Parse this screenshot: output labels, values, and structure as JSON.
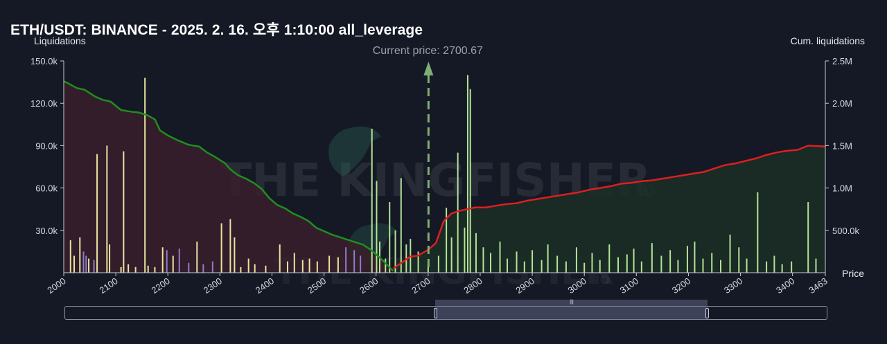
{
  "title": "ETH/USDT: BINANCE - 2025. 2. 16. 오후 1:10:00 all_leverage",
  "colors": {
    "background": "#151925",
    "short_fill": "#3a1f2c",
    "long_fill": "#1b2e24",
    "cum_short_line": "#1e8f1e",
    "cum_long_line": "#dd1f1f",
    "bar_yellow": "#e6e6a0",
    "bar_green": "#b4e496",
    "bar_purple": "#8a7fc8",
    "current_price_line": "#7fae72"
  },
  "chart_data": {
    "type": "bar",
    "title": "ETH/USDT: BINANCE - 2025. 2. 16. 오후 1:10:00 all_leverage",
    "ylabel_left": "Liquidations",
    "ylabel_right": "Cum. liquidations",
    "xlabel": "Price",
    "current_price_label": "Current price: 2700.67",
    "current_price": 2700.67,
    "xlim": [
      2000,
      3463
    ],
    "ylim_left": [
      0,
      150000
    ],
    "ylim_right": [
      0,
      2500000
    ],
    "x_ticks": [
      "2000",
      "2100",
      "2200",
      "2300",
      "2400",
      "2500",
      "2600",
      "2700",
      "2800",
      "2900",
      "3000",
      "3100",
      "3200",
      "3300",
      "3400",
      "3463"
    ],
    "y_left_ticks": [
      "30.0k",
      "60.0k",
      "90.0k",
      "120.0k",
      "150.0k"
    ],
    "y_right_ticks": [
      "500.0k",
      "1.0M",
      "1.5M",
      "2.0M",
      "2.5M"
    ],
    "grid": false,
    "bars": [
      {
        "x": 2013,
        "y": 23000,
        "c": "yellow"
      },
      {
        "x": 2020,
        "y": 12000,
        "c": "yellow"
      },
      {
        "x": 2031,
        "y": 25000,
        "c": "yellow"
      },
      {
        "x": 2038,
        "y": 15000,
        "c": "purple"
      },
      {
        "x": 2043,
        "y": 12000,
        "c": "purple"
      },
      {
        "x": 2048,
        "y": 10000,
        "c": "yellow"
      },
      {
        "x": 2058,
        "y": 9000,
        "c": "purple"
      },
      {
        "x": 2064,
        "y": 84000,
        "c": "yellow"
      },
      {
        "x": 2083,
        "y": 90000,
        "c": "yellow"
      },
      {
        "x": 2088,
        "y": 20000,
        "c": "yellow"
      },
      {
        "x": 2110,
        "y": 4000,
        "c": "yellow"
      },
      {
        "x": 2115,
        "y": 86000,
        "c": "yellow"
      },
      {
        "x": 2124,
        "y": 6000,
        "c": "yellow"
      },
      {
        "x": 2138,
        "y": 4000,
        "c": "yellow"
      },
      {
        "x": 2156,
        "y": 138000,
        "c": "yellow"
      },
      {
        "x": 2162,
        "y": 5000,
        "c": "yellow"
      },
      {
        "x": 2175,
        "y": 4000,
        "c": "yellow"
      },
      {
        "x": 2190,
        "y": 18000,
        "c": "yellow"
      },
      {
        "x": 2198,
        "y": 16000,
        "c": "purple"
      },
      {
        "x": 2210,
        "y": 12000,
        "c": "yellow"
      },
      {
        "x": 2222,
        "y": 17000,
        "c": "purple"
      },
      {
        "x": 2240,
        "y": 7000,
        "c": "purple"
      },
      {
        "x": 2256,
        "y": 22000,
        "c": "yellow"
      },
      {
        "x": 2268,
        "y": 6000,
        "c": "purple"
      },
      {
        "x": 2286,
        "y": 8000,
        "c": "purple"
      },
      {
        "x": 2303,
        "y": 35000,
        "c": "yellow"
      },
      {
        "x": 2320,
        "y": 38000,
        "c": "yellow"
      },
      {
        "x": 2328,
        "y": 25000,
        "c": "yellow"
      },
      {
        "x": 2340,
        "y": 4000,
        "c": "yellow"
      },
      {
        "x": 2355,
        "y": 10000,
        "c": "yellow"
      },
      {
        "x": 2367,
        "y": 6000,
        "c": "yellow"
      },
      {
        "x": 2388,
        "y": 5000,
        "c": "yellow"
      },
      {
        "x": 2415,
        "y": 20000,
        "c": "yellow"
      },
      {
        "x": 2430,
        "y": 8000,
        "c": "yellow"
      },
      {
        "x": 2443,
        "y": 14000,
        "c": "yellow"
      },
      {
        "x": 2459,
        "y": 9000,
        "c": "yellow"
      },
      {
        "x": 2472,
        "y": 10000,
        "c": "yellow"
      },
      {
        "x": 2487,
        "y": 8000,
        "c": "yellow"
      },
      {
        "x": 2510,
        "y": 12000,
        "c": "yellow"
      },
      {
        "x": 2527,
        "y": 11000,
        "c": "yellow"
      },
      {
        "x": 2542,
        "y": 18000,
        "c": "purple"
      },
      {
        "x": 2558,
        "y": 16000,
        "c": "purple"
      },
      {
        "x": 2570,
        "y": 12000,
        "c": "purple"
      },
      {
        "x": 2592,
        "y": 102000,
        "c": "green"
      },
      {
        "x": 2601,
        "y": 65000,
        "c": "green"
      },
      {
        "x": 2607,
        "y": 22000,
        "c": "green"
      },
      {
        "x": 2618,
        "y": 10000,
        "c": "green"
      },
      {
        "x": 2626,
        "y": 50000,
        "c": "green"
      },
      {
        "x": 2637,
        "y": 30000,
        "c": "green"
      },
      {
        "x": 2648,
        "y": 67000,
        "c": "green"
      },
      {
        "x": 2658,
        "y": 20000,
        "c": "green"
      },
      {
        "x": 2666,
        "y": 24000,
        "c": "green"
      },
      {
        "x": 2681,
        "y": 15000,
        "c": "green"
      },
      {
        "x": 2700,
        "y": 6000,
        "c": "green"
      },
      {
        "x": 2720,
        "y": 12000,
        "c": "green"
      },
      {
        "x": 2735,
        "y": 46000,
        "c": "green"
      },
      {
        "x": 2745,
        "y": 25000,
        "c": "green"
      },
      {
        "x": 2757,
        "y": 85000,
        "c": "green"
      },
      {
        "x": 2770,
        "y": 32000,
        "c": "green"
      },
      {
        "x": 2776,
        "y": 140000,
        "c": "green"
      },
      {
        "x": 2781,
        "y": 130000,
        "c": "green"
      },
      {
        "x": 2792,
        "y": 28000,
        "c": "green"
      },
      {
        "x": 2806,
        "y": 18000,
        "c": "green"
      },
      {
        "x": 2820,
        "y": 14000,
        "c": "green"
      },
      {
        "x": 2838,
        "y": 22000,
        "c": "green"
      },
      {
        "x": 2852,
        "y": 10000,
        "c": "green"
      },
      {
        "x": 2870,
        "y": 15000,
        "c": "green"
      },
      {
        "x": 2885,
        "y": 8000,
        "c": "green"
      },
      {
        "x": 2900,
        "y": 16000,
        "c": "green"
      },
      {
        "x": 2918,
        "y": 9000,
        "c": "green"
      },
      {
        "x": 2930,
        "y": 20000,
        "c": "green"
      },
      {
        "x": 2948,
        "y": 12000,
        "c": "green"
      },
      {
        "x": 2965,
        "y": 8000,
        "c": "green"
      },
      {
        "x": 2985,
        "y": 18000,
        "c": "green"
      },
      {
        "x": 3000,
        "y": 7000,
        "c": "green"
      },
      {
        "x": 3015,
        "y": 14000,
        "c": "green"
      },
      {
        "x": 3030,
        "y": 9000,
        "c": "green"
      },
      {
        "x": 3048,
        "y": 20000,
        "c": "green"
      },
      {
        "x": 3065,
        "y": 11000,
        "c": "green"
      },
      {
        "x": 3082,
        "y": 13000,
        "c": "green"
      },
      {
        "x": 3095,
        "y": 17000,
        "c": "green"
      },
      {
        "x": 3110,
        "y": 8000,
        "c": "green"
      },
      {
        "x": 3130,
        "y": 21000,
        "c": "green"
      },
      {
        "x": 3148,
        "y": 12000,
        "c": "green"
      },
      {
        "x": 3165,
        "y": 16000,
        "c": "green"
      },
      {
        "x": 3180,
        "y": 9000,
        "c": "green"
      },
      {
        "x": 3198,
        "y": 19000,
        "c": "green"
      },
      {
        "x": 3212,
        "y": 22000,
        "c": "green"
      },
      {
        "x": 3228,
        "y": 10000,
        "c": "green"
      },
      {
        "x": 3245,
        "y": 14000,
        "c": "green"
      },
      {
        "x": 3262,
        "y": 9000,
        "c": "green"
      },
      {
        "x": 3280,
        "y": 27000,
        "c": "green"
      },
      {
        "x": 3297,
        "y": 18000,
        "c": "green"
      },
      {
        "x": 3312,
        "y": 10000,
        "c": "green"
      },
      {
        "x": 3333,
        "y": 57000,
        "c": "green"
      },
      {
        "x": 3350,
        "y": 8000,
        "c": "green"
      },
      {
        "x": 3365,
        "y": 12000,
        "c": "green"
      },
      {
        "x": 3380,
        "y": 6000,
        "c": "green"
      },
      {
        "x": 3398,
        "y": 8000,
        "c": "green"
      },
      {
        "x": 3430,
        "y": 50000,
        "c": "green"
      },
      {
        "x": 3445,
        "y": 10000,
        "c": "green"
      }
    ],
    "cum_short": {
      "x": [
        2000,
        2010,
        2025,
        2040,
        2060,
        2075,
        2090,
        2110,
        2130,
        2145,
        2160,
        2175,
        2185,
        2200,
        2220,
        2240,
        2260,
        2275,
        2290,
        2300,
        2310,
        2320,
        2335,
        2350,
        2365,
        2380,
        2395,
        2410,
        2425,
        2440,
        2455,
        2470,
        2485,
        2500,
        2515,
        2530,
        2545,
        2560,
        2575,
        2590,
        2605,
        2620,
        2633
      ],
      "y": [
        2260000,
        2230000,
        2180000,
        2160000,
        2080000,
        2040000,
        2020000,
        1920000,
        1900000,
        1890000,
        1860000,
        1810000,
        1680000,
        1620000,
        1560000,
        1510000,
        1490000,
        1420000,
        1370000,
        1330000,
        1290000,
        1220000,
        1150000,
        1110000,
        1060000,
        990000,
        880000,
        800000,
        760000,
        700000,
        660000,
        610000,
        530000,
        490000,
        450000,
        420000,
        390000,
        360000,
        330000,
        270000,
        190000,
        100000,
        20000
      ]
    },
    "cum_long": {
      "x": [
        2633,
        2650,
        2665,
        2680,
        2700,
        2715,
        2730,
        2745,
        2760,
        2775,
        2790,
        2810,
        2830,
        2850,
        2870,
        2890,
        2910,
        2930,
        2950,
        2970,
        2990,
        3010,
        3030,
        3050,
        3070,
        3090,
        3110,
        3130,
        3150,
        3170,
        3190,
        3210,
        3230,
        3250,
        3270,
        3290,
        3310,
        3330,
        3350,
        3370,
        3390,
        3410,
        3430,
        3463
      ],
      "y": [
        50000,
        120000,
        190000,
        200000,
        270000,
        350000,
        610000,
        700000,
        730000,
        750000,
        770000,
        770000,
        790000,
        810000,
        820000,
        850000,
        870000,
        890000,
        910000,
        930000,
        950000,
        980000,
        1000000,
        1020000,
        1050000,
        1060000,
        1080000,
        1090000,
        1110000,
        1130000,
        1150000,
        1170000,
        1190000,
        1230000,
        1270000,
        1290000,
        1320000,
        1350000,
        1390000,
        1420000,
        1440000,
        1450000,
        1500000,
        1490000
      ]
    }
  },
  "watermark": {
    "text_main": "THE KINGFISHER",
    "suffix": "io",
    "icon": "kingfisher-bird-icon"
  },
  "range_slider": {
    "start": 2700,
    "end": 3463,
    "grip_icon": "grip-lines-icon"
  }
}
